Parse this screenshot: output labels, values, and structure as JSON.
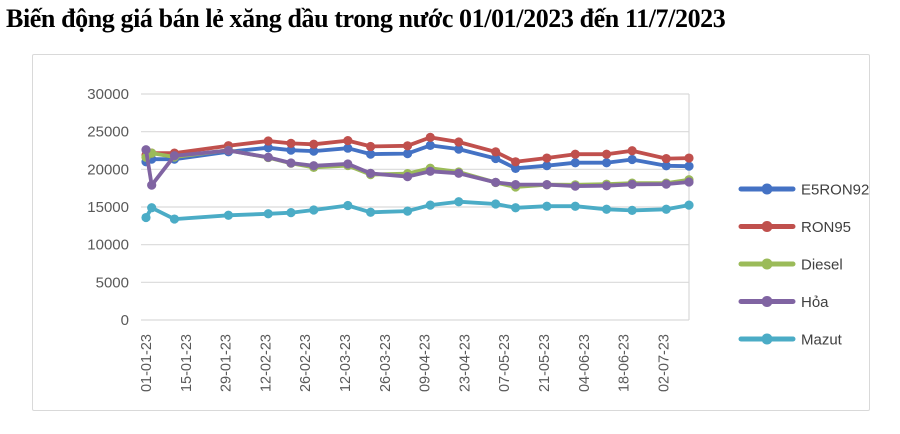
{
  "title": "Biến động giá bán lẻ xăng dầu trong nước 01/01/2023 đến 11/7/2023",
  "chart_data": {
    "type": "line",
    "unit": "VND",
    "x_dates": [
      "01-01-23",
      "03-01-23",
      "11-01-23",
      "30-01-23",
      "13-02-23",
      "21-02-23",
      "01-03-23",
      "13-03-23",
      "21-03-23",
      "03-04-23",
      "11-04-23",
      "21-04-23",
      "04-05-23",
      "11-05-23",
      "22-05-23",
      "01-06-23",
      "12-06-23",
      "21-06-23",
      "03-07-23",
      "11-07-23"
    ],
    "x_day_offsets": [
      0,
      2,
      10,
      29,
      43,
      51,
      59,
      71,
      79,
      92,
      100,
      110,
      123,
      130,
      141,
      151,
      162,
      171,
      183,
      191
    ],
    "x_tick_labels": [
      "01-01-23",
      "15-01-23",
      "29-01-23",
      "12-02-23",
      "26-02-23",
      "12-03-23",
      "26-03-23",
      "09-04-23",
      "23-04-23",
      "07-05-23",
      "21-05-23",
      "04-06-23",
      "18-06-23",
      "02-07-23"
    ],
    "x_tick_day_offsets": [
      0,
      14,
      28,
      42,
      56,
      70,
      84,
      98,
      112,
      126,
      140,
      154,
      168,
      182
    ],
    "ylim": [
      0,
      30000
    ],
    "y_ticks": [
      0,
      5000,
      10000,
      15000,
      20000,
      25000,
      30000
    ],
    "grid": "horizontal",
    "legend_position": "right",
    "series": [
      {
        "name": "E5RON92",
        "color": "#4472C4",
        "values": [
          21000,
          21350,
          21350,
          22329,
          22869,
          22542,
          22421,
          22806,
          22022,
          22082,
          23173,
          22681,
          21437,
          20131,
          20488,
          20878,
          20878,
          21302,
          20470,
          20419
        ]
      },
      {
        "name": "RON95",
        "color": "#C0504D",
        "values": [
          21900,
          22150,
          22150,
          23140,
          23767,
          23443,
          23325,
          23818,
          23038,
          23125,
          24245,
          23634,
          22320,
          21000,
          21499,
          22010,
          22010,
          22466,
          21428,
          21497
        ]
      },
      {
        "name": "Diesel",
        "color": "#9BBB59",
        "values": [
          21600,
          22151,
          21634,
          22524,
          21562,
          20806,
          20255,
          20502,
          19302,
          19430,
          20149,
          19653,
          18254,
          17653,
          17954,
          17943,
          18028,
          18174,
          18169,
          18616
        ]
      },
      {
        "name": "Hỏa",
        "color": "#8064A2",
        "values": [
          22600,
          17900,
          21800,
          22500,
          21600,
          20846,
          20474,
          20715,
          19462,
          19037,
          19739,
          19480,
          18264,
          17972,
          17969,
          17771,
          17823,
          18002,
          18040,
          18320
        ]
      },
      {
        "name": "Mazut",
        "color": "#4BACC6",
        "values": [
          13600,
          14900,
          13400,
          13900,
          14100,
          14250,
          14600,
          15200,
          14300,
          14450,
          15250,
          15700,
          15400,
          14900,
          15100,
          15100,
          14700,
          14550,
          14700,
          15250
        ]
      }
    ],
    "colors": {
      "grid": "#d9d9d9",
      "axis_text": "#595959",
      "legend_text": "#404040",
      "chart_border": "#d9d9d9"
    }
  }
}
